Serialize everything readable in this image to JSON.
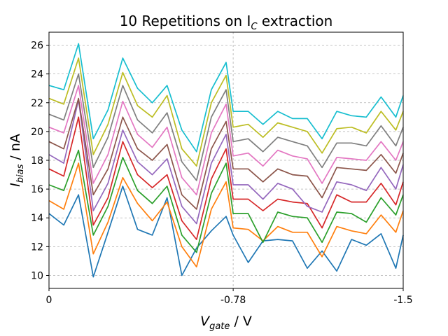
{
  "chart_data": {
    "type": "line",
    "title": "10 Repetitions on I",
    "title_subscript": "C",
    "title_suffix": " extraction",
    "xlabel_main": "V",
    "xlabel_sub": "gate",
    "xlabel_unit": " / V",
    "ylabel_main": "I",
    "ylabel_sub": "bias",
    "ylabel_unit": " / nA",
    "x_tick_values": [
      0,
      -0.78,
      -1.5
    ],
    "x_tick_labels": [
      "0",
      "-0.78",
      "-1.5"
    ],
    "y_ticks": [
      10,
      12,
      14,
      16,
      18,
      20,
      22,
      24,
      26
    ],
    "xlim": [
      0,
      -1.5
    ],
    "ylim": [
      9.1,
      26.9
    ],
    "grid": true,
    "x": [
      0,
      -0.0625,
      -0.125,
      -0.1875,
      -0.25,
      -0.3125,
      -0.375,
      -0.4375,
      -0.5,
      -0.5625,
      -0.625,
      -0.6875,
      -0.75,
      -0.78,
      -0.8438,
      -0.9063,
      -0.9688,
      -1.0313,
      -1.0938,
      -1.1563,
      -1.2188,
      -1.2813,
      -1.3438,
      -1.4063,
      -1.4688,
      -1.5
    ],
    "series": [
      {
        "color": "#1f77b4",
        "values": [
          14.3,
          13.5,
          15.6,
          9.9,
          13.0,
          16.2,
          13.2,
          12.8,
          15.4,
          10.0,
          11.9,
          13.1,
          14.1,
          12.8,
          10.9,
          12.4,
          12.5,
          12.4,
          10.5,
          11.7,
          10.3,
          12.5,
          12.1,
          12.9,
          10.5,
          12.8
        ]
      },
      {
        "color": "#ff7f0e",
        "values": [
          15.2,
          14.6,
          17.8,
          11.5,
          13.7,
          16.8,
          15.0,
          13.8,
          15.1,
          12.0,
          10.6,
          14.6,
          16.5,
          13.3,
          13.2,
          12.4,
          13.4,
          13.0,
          13.0,
          11.3,
          13.4,
          13.1,
          12.9,
          14.2,
          13.0,
          14.5
        ]
      },
      {
        "color": "#2ca02c",
        "values": [
          16.3,
          15.9,
          18.7,
          12.8,
          14.8,
          18.2,
          15.9,
          15.0,
          16.2,
          12.8,
          11.6,
          15.7,
          17.8,
          14.3,
          14.3,
          12.3,
          14.4,
          14.1,
          14.0,
          12.3,
          14.4,
          14.3,
          13.7,
          15.4,
          14.2,
          15.6
        ]
      },
      {
        "color": "#d62728",
        "values": [
          17.4,
          16.9,
          21.0,
          13.5,
          15.4,
          19.3,
          17.0,
          16.1,
          17.0,
          13.8,
          12.5,
          16.7,
          18.8,
          15.3,
          15.3,
          14.5,
          15.3,
          15.1,
          15.0,
          13.3,
          15.6,
          15.1,
          15.1,
          16.4,
          14.9,
          16.5
        ]
      },
      {
        "color": "#9467bd",
        "values": [
          18.4,
          17.8,
          22.2,
          14.5,
          16.4,
          20.1,
          17.9,
          17.0,
          18.1,
          14.8,
          13.6,
          17.8,
          19.8,
          16.3,
          16.3,
          15.3,
          16.4,
          16.0,
          14.8,
          14.4,
          16.5,
          16.3,
          15.9,
          17.5,
          16.0,
          17.7
        ]
      },
      {
        "color": "#8c564b",
        "values": [
          19.3,
          18.8,
          22.3,
          15.6,
          17.4,
          21.0,
          18.8,
          18.0,
          19.1,
          15.6,
          14.6,
          18.8,
          20.7,
          17.4,
          17.4,
          16.5,
          17.4,
          17.0,
          16.9,
          15.4,
          17.5,
          17.4,
          17.3,
          18.4,
          17.1,
          18.5
        ]
      },
      {
        "color": "#e377c2",
        "values": [
          20.3,
          19.9,
          23.2,
          16.4,
          18.4,
          22.1,
          19.8,
          18.9,
          20.3,
          16.8,
          15.6,
          19.9,
          21.9,
          18.3,
          18.5,
          17.6,
          18.7,
          18.3,
          18.1,
          16.4,
          18.2,
          18.1,
          18.0,
          19.3,
          18.0,
          19.3
        ]
      },
      {
        "color": "#7f7f7f",
        "values": [
          21.2,
          20.8,
          24.0,
          17.5,
          19.6,
          23.2,
          20.8,
          19.9,
          21.3,
          17.9,
          16.6,
          21.0,
          22.9,
          19.3,
          19.5,
          18.6,
          19.6,
          19.3,
          19.0,
          17.5,
          19.2,
          19.2,
          19.0,
          20.4,
          19.0,
          20.3
        ]
      },
      {
        "color": "#bcbd22",
        "values": [
          22.3,
          21.9,
          25.1,
          18.4,
          20.5,
          24.1,
          21.8,
          21.0,
          22.5,
          18.8,
          17.6,
          22.0,
          23.9,
          20.3,
          20.5,
          19.6,
          20.6,
          20.3,
          20.0,
          18.5,
          20.2,
          20.3,
          19.9,
          21.4,
          20.1,
          21.4
        ]
      },
      {
        "color": "#17becf",
        "values": [
          23.2,
          22.9,
          26.1,
          19.5,
          21.5,
          25.1,
          23.0,
          22.0,
          23.2,
          20.1,
          18.6,
          22.9,
          24.8,
          21.4,
          21.4,
          20.5,
          21.4,
          20.9,
          20.9,
          19.5,
          21.4,
          21.1,
          21.0,
          22.4,
          21.0,
          22.5
        ]
      }
    ]
  }
}
